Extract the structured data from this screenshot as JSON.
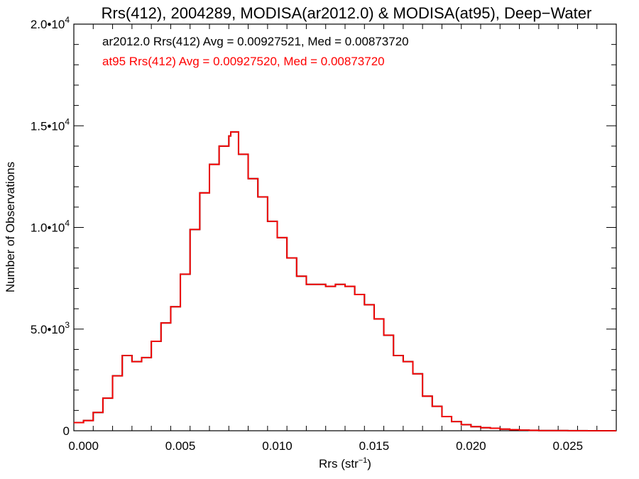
{
  "chart_data": {
    "type": "line",
    "title": "Rrs(412), 2004289, MODISA(ar2012.0) & MODISA(at95), Deep−Water",
    "xlabel": "Rrs (str",
    "xlabel_sup": "−1",
    "xlabel_end": ")",
    "ylabel": "Number of Observations",
    "xlim": [
      -0.0005,
      0.0275
    ],
    "ylim": [
      0,
      20000
    ],
    "x_ticks": [
      {
        "value": 0.0,
        "label": "0.000"
      },
      {
        "value": 0.005,
        "label": "0.005"
      },
      {
        "value": 0.01,
        "label": "0.010"
      },
      {
        "value": 0.015,
        "label": "0.015"
      },
      {
        "value": 0.02,
        "label": "0.020"
      },
      {
        "value": 0.025,
        "label": "0.025"
      }
    ],
    "y_ticks": [
      {
        "value": 0,
        "base": "0",
        "exp": ""
      },
      {
        "value": 5000,
        "base": "5.0•10",
        "exp": "3"
      },
      {
        "value": 10000,
        "base": "1.0•10",
        "exp": "4"
      },
      {
        "value": 15000,
        "base": "1.5•10",
        "exp": "4"
      },
      {
        "value": 20000,
        "base": "2.0•10",
        "exp": "4"
      }
    ],
    "annotations": [
      {
        "text": "ar2012.0 Rrs(412) Avg = 0.00927521, Med = 0.00873720",
        "color": "#000000"
      },
      {
        "text": "at95 Rrs(412) Avg = 0.00927520, Med = 0.00873720",
        "color": "#ff0000"
      }
    ],
    "series": [
      {
        "name": "ar2012.0",
        "color": "#000000",
        "x": [
          -0.0005,
          0.0,
          0.0005,
          0.001,
          0.0015,
          0.002,
          0.0025,
          0.003,
          0.0035,
          0.004,
          0.0045,
          0.005,
          0.0055,
          0.006,
          0.0065,
          0.007,
          0.0075,
          0.0076,
          0.008,
          0.0085,
          0.009,
          0.0095,
          0.01,
          0.0105,
          0.011,
          0.0115,
          0.012,
          0.0125,
          0.013,
          0.0135,
          0.014,
          0.0145,
          0.015,
          0.0155,
          0.016,
          0.0165,
          0.017,
          0.0175,
          0.018,
          0.0185,
          0.019,
          0.0195,
          0.02,
          0.0205,
          0.021,
          0.0215,
          0.022,
          0.0225,
          0.023,
          0.0235,
          0.024,
          0.025,
          0.026,
          0.0275
        ],
        "y": [
          400,
          500,
          900,
          1600,
          2700,
          3700,
          3400,
          3600,
          4400,
          5300,
          6100,
          7700,
          9900,
          11700,
          13100,
          14000,
          14500,
          14700,
          13600,
          12400,
          11500,
          10300,
          9500,
          8500,
          7600,
          7200,
          7200,
          7100,
          7200,
          7100,
          6700,
          6200,
          5500,
          4700,
          3700,
          3400,
          2800,
          1700,
          1200,
          700,
          450,
          300,
          200,
          150,
          120,
          80,
          50,
          30,
          20,
          10,
          10,
          5,
          0,
          0
        ]
      },
      {
        "name": "at95",
        "color": "#ff0000",
        "x": [
          -0.0005,
          0.0,
          0.0005,
          0.001,
          0.0015,
          0.002,
          0.0025,
          0.003,
          0.0035,
          0.004,
          0.0045,
          0.005,
          0.0055,
          0.006,
          0.0065,
          0.007,
          0.0075,
          0.0076,
          0.008,
          0.0085,
          0.009,
          0.0095,
          0.01,
          0.0105,
          0.011,
          0.0115,
          0.012,
          0.0125,
          0.013,
          0.0135,
          0.014,
          0.0145,
          0.015,
          0.0155,
          0.016,
          0.0165,
          0.017,
          0.0175,
          0.018,
          0.0185,
          0.019,
          0.0195,
          0.02,
          0.0205,
          0.021,
          0.0215,
          0.022,
          0.0225,
          0.023,
          0.0235,
          0.024,
          0.025,
          0.026,
          0.0275
        ],
        "y": [
          400,
          500,
          900,
          1600,
          2700,
          3700,
          3400,
          3600,
          4400,
          5300,
          6100,
          7700,
          9900,
          11700,
          13100,
          14000,
          14500,
          14700,
          13600,
          12400,
          11500,
          10300,
          9500,
          8500,
          7600,
          7200,
          7200,
          7100,
          7200,
          7100,
          6700,
          6200,
          5500,
          4700,
          3700,
          3400,
          2800,
          1700,
          1200,
          700,
          450,
          300,
          200,
          150,
          120,
          80,
          50,
          30,
          20,
          10,
          10,
          5,
          0,
          0
        ]
      }
    ],
    "grid": false,
    "legend": "none"
  }
}
